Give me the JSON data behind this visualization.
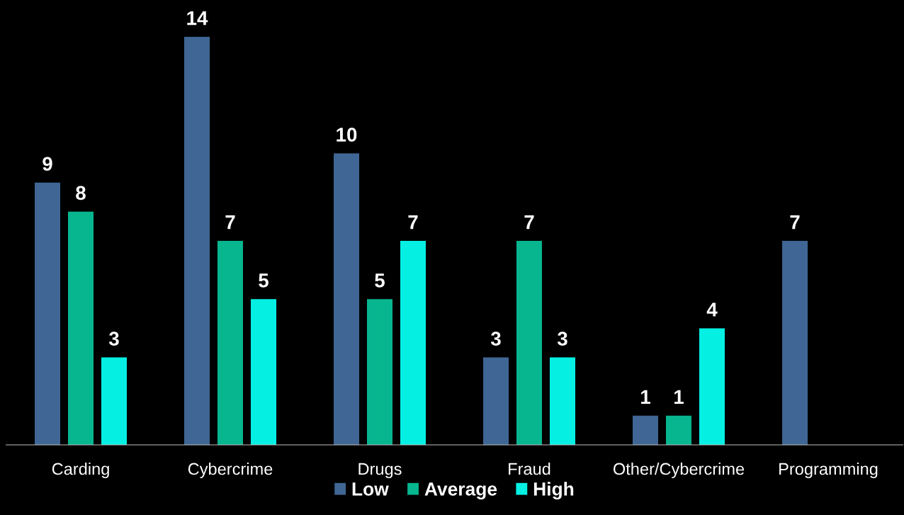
{
  "chart_data": {
    "type": "bar",
    "categories": [
      "Carding",
      "Cybercrime",
      "Drugs",
      "Fraud",
      "Other/Cybercrime",
      "Programming"
    ],
    "series": [
      {
        "name": "Low",
        "color": "#3f6694",
        "values": [
          9,
          14,
          10,
          3,
          1,
          7
        ]
      },
      {
        "name": "Average",
        "color": "#07b58f",
        "values": [
          8,
          7,
          5,
          7,
          1,
          null
        ]
      },
      {
        "name": "High",
        "color": "#05f0e3",
        "values": [
          3,
          5,
          7,
          3,
          4,
          null
        ]
      }
    ],
    "data_labels": true,
    "legend": "bottom",
    "grid": false
  }
}
